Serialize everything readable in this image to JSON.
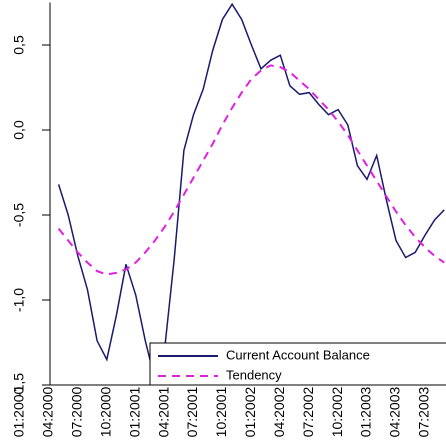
{
  "chart_data": {
    "type": "line",
    "categories": [
      "01:2000",
      null,
      null,
      "04:2000",
      null,
      null,
      "07:2000",
      null,
      null,
      "10:2000",
      null,
      null,
      "01:2001",
      null,
      null,
      "04:2001",
      null,
      null,
      "07:2001",
      null,
      null,
      "10:2001",
      null,
      null,
      "01:2002",
      null,
      null,
      "04:2002",
      null,
      null,
      "07:2002",
      null,
      null,
      "10:2002",
      null,
      null,
      "01:2003",
      null,
      null,
      "04:2003",
      null,
      null,
      "07:2003",
      null,
      null
    ],
    "series": [
      {
        "name": "Current Account Balance",
        "color": "#1a1a6e",
        "values": [
          null,
          null,
          null,
          null,
          -0.32,
          -0.5,
          -0.74,
          -0.94,
          -1.24,
          -1.35,
          -1.09,
          -0.79,
          -0.97,
          -1.24,
          -1.47,
          -1.29,
          -0.76,
          -0.12,
          0.09,
          0.24,
          0.47,
          0.65,
          0.74,
          0.65,
          0.5,
          0.36,
          0.41,
          0.44,
          0.26,
          0.21,
          0.22,
          0.15,
          0.09,
          0.12,
          0.03,
          -0.21,
          -0.29,
          -0.15,
          -0.41,
          -0.65,
          -0.75,
          -0.72,
          -0.62,
          -0.53,
          -0.47
        ]
      },
      {
        "name": "Tendency",
        "color": "#e020e0",
        "dashed": true,
        "values": [
          null,
          null,
          null,
          null,
          -0.58,
          -0.65,
          -0.72,
          -0.78,
          -0.83,
          -0.85,
          -0.84,
          -0.82,
          -0.78,
          -0.72,
          -0.65,
          -0.57,
          -0.48,
          -0.38,
          -0.28,
          -0.18,
          -0.08,
          0.03,
          0.13,
          0.22,
          0.3,
          0.35,
          0.38,
          0.37,
          0.34,
          0.29,
          0.24,
          0.18,
          0.12,
          0.05,
          -0.03,
          -0.12,
          -0.21,
          -0.3,
          -0.39,
          -0.48,
          -0.56,
          -0.63,
          -0.69,
          -0.74,
          -0.78
        ]
      }
    ],
    "ylim": [
      -1.5,
      0.75
    ],
    "yticks": [
      {
        "value": -1.5,
        "label": "-1,5"
      },
      {
        "value": -1.0,
        "label": "-1,0"
      },
      {
        "value": -0.5,
        "label": "-0,5"
      },
      {
        "value": 0.0,
        "label": "0,0"
      },
      {
        "value": 0.5,
        "label": "0,5"
      }
    ],
    "grid": false
  }
}
